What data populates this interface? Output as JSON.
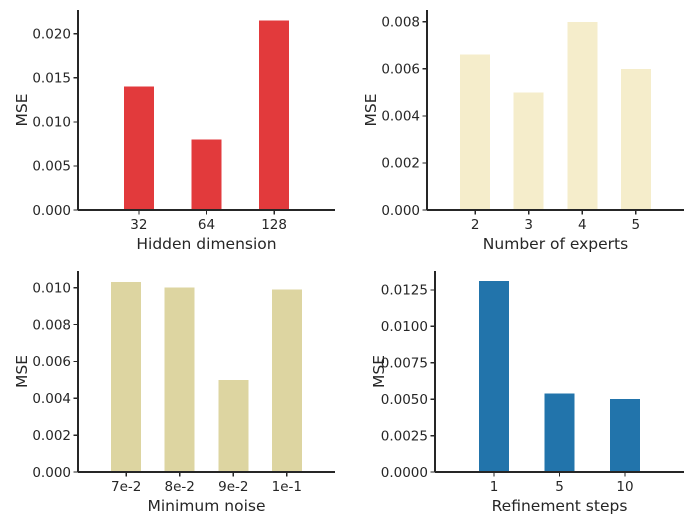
{
  "figure": {
    "background": "#ffffff",
    "text_color": "#262626",
    "axis_color": "#262626"
  },
  "chart_data": [
    {
      "id": "hidden-dimension",
      "type": "bar",
      "title": "",
      "categories": [
        "32",
        "64",
        "128"
      ],
      "values": [
        0.014,
        0.008,
        0.0215
      ],
      "xlabel": "Hidden dimension",
      "ylabel": "MSE",
      "ylim": [
        0,
        0.0227
      ],
      "yticks": [
        {
          "value": 0.0,
          "label": "0.000"
        },
        {
          "value": 0.005,
          "label": "0.005"
        },
        {
          "value": 0.01,
          "label": "0.010"
        },
        {
          "value": 0.015,
          "label": "0.015"
        },
        {
          "value": 0.02,
          "label": "0.020"
        }
      ],
      "bar_color": "#e23a3c",
      "grid": false,
      "legend": "none"
    },
    {
      "id": "number-of-experts",
      "type": "bar",
      "title": "",
      "categories": [
        "2",
        "3",
        "4",
        "5"
      ],
      "values": [
        0.0066,
        0.005,
        0.008,
        0.006
      ],
      "xlabel": "Number of experts",
      "ylabel": "MSE",
      "ylim": [
        0,
        0.0085
      ],
      "yticks": [
        {
          "value": 0.0,
          "label": "0.000"
        },
        {
          "value": 0.002,
          "label": "0.002"
        },
        {
          "value": 0.004,
          "label": "0.004"
        },
        {
          "value": 0.006,
          "label": "0.006"
        },
        {
          "value": 0.008,
          "label": "0.008"
        }
      ],
      "bar_color": "#f5edcb",
      "grid": false,
      "legend": "none"
    },
    {
      "id": "minimum-noise",
      "type": "bar",
      "title": "",
      "categories": [
        "7e-2",
        "8e-2",
        "9e-2",
        "1e-1"
      ],
      "values": [
        0.0103,
        0.01,
        0.005,
        0.0099
      ],
      "xlabel": "Minimum noise",
      "ylabel": "MSE",
      "ylim": [
        0,
        0.0109
      ],
      "yticks": [
        {
          "value": 0.0,
          "label": "0.000"
        },
        {
          "value": 0.002,
          "label": "0.002"
        },
        {
          "value": 0.004,
          "label": "0.004"
        },
        {
          "value": 0.006,
          "label": "0.006"
        },
        {
          "value": 0.008,
          "label": "0.008"
        },
        {
          "value": 0.01,
          "label": "0.010"
        }
      ],
      "bar_color": "#ddd5a1",
      "grid": false,
      "legend": "none"
    },
    {
      "id": "refinement-steps",
      "type": "bar",
      "title": "",
      "categories": [
        "1",
        "5",
        "10"
      ],
      "values": [
        0.0131,
        0.0054,
        0.005
      ],
      "xlabel": "Refinement steps",
      "ylabel": "MSE",
      "ylim": [
        0,
        0.0138
      ],
      "yticks": [
        {
          "value": 0.0,
          "label": "0.0000"
        },
        {
          "value": 0.0025,
          "label": "0.0025"
        },
        {
          "value": 0.005,
          "label": "0.0050"
        },
        {
          "value": 0.0075,
          "label": "0.0075"
        },
        {
          "value": 0.01,
          "label": "0.0100"
        },
        {
          "value": 0.0125,
          "label": "0.0125"
        }
      ],
      "bar_color": "#2274ab",
      "grid": false,
      "legend": "none"
    }
  ]
}
